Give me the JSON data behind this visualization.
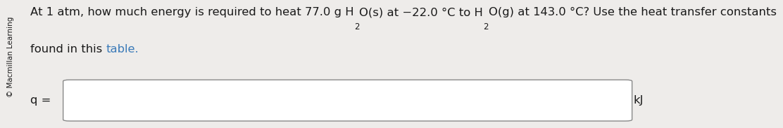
{
  "bg_color": "#eeecea",
  "text_part0": "At 1 atm, how much energy is required to heat 77.0 g H",
  "text_sub1": "2",
  "text_part1": "O(s) at −22.0 °C to H",
  "text_sub2": "2",
  "text_part2": "O(g) at 143.0 °C? Use the heat transfer constants",
  "text_line2_pre": "found in this ",
  "text_line2_link": "table.",
  "copyright_text": "© Macmillan Learning",
  "q_label": "q =",
  "unit_label": "kJ",
  "input_box_color": "#ffffff",
  "input_box_edge_color": "#888888",
  "font_size_main": 11.8,
  "font_size_sub": 8.5,
  "font_size_copyright": 7.5,
  "link_color": "#3a7ab8",
  "text_color": "#1a1a1a"
}
